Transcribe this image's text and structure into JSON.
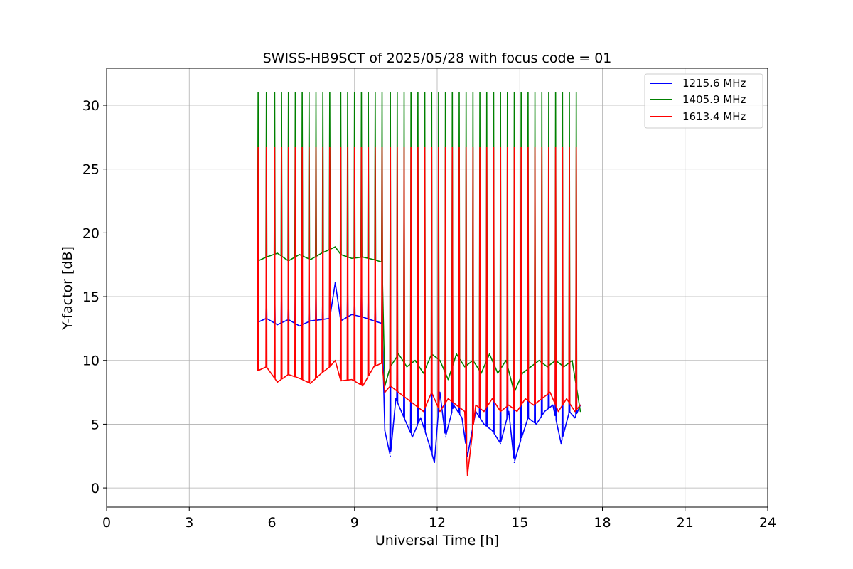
{
  "chart_data": {
    "type": "line",
    "title": "SWISS-HB9SCT of 2025/05/28 with focus code = 01",
    "xlabel": "Universal Time [h]",
    "ylabel": "Y-factor [dB]",
    "xlim": [
      0,
      24
    ],
    "ylim": [
      -1.5,
      32.9
    ],
    "xticks": [
      0,
      3,
      6,
      9,
      12,
      15,
      18,
      21,
      24
    ],
    "yticks": [
      0,
      5,
      10,
      15,
      20,
      25,
      30
    ],
    "grid": true,
    "legend_position": "top-right",
    "spike_times_h": [
      5.5,
      5.8,
      6.1,
      6.35,
      6.6,
      6.85,
      7.1,
      7.35,
      7.6,
      7.85,
      8.1,
      8.5,
      8.75,
      9.0,
      9.25,
      9.5,
      9.75,
      10.0,
      10.3,
      10.55,
      10.8,
      11.05,
      11.3,
      11.55,
      11.8,
      12.05,
      12.3,
      12.55,
      12.8,
      13.05,
      13.3,
      13.55,
      13.8,
      14.05,
      14.3,
      14.55,
      14.8,
      15.05,
      15.3,
      15.55,
      15.8,
      16.05,
      16.3,
      16.55,
      16.8,
      17.05
    ],
    "series": [
      {
        "name": "1215.6 MHz",
        "color": "#0000ff",
        "spike_peak": 15.8,
        "x": [
          5.5,
          5.8,
          6.2,
          6.6,
          7.0,
          7.4,
          7.8,
          8.1,
          8.3,
          8.5,
          8.9,
          9.3,
          9.7,
          10.0,
          10.1,
          10.3,
          10.5,
          10.8,
          11.1,
          11.4,
          11.7,
          11.9,
          12.1,
          12.3,
          12.6,
          12.9,
          13.1,
          13.4,
          13.7,
          14.0,
          14.3,
          14.6,
          14.8,
          15.0,
          15.3,
          15.6,
          15.9,
          16.2,
          16.5,
          16.8,
          17.0,
          17.2
        ],
        "y": [
          13.0,
          13.3,
          12.8,
          13.2,
          12.7,
          13.1,
          13.2,
          13.3,
          16.1,
          13.1,
          13.6,
          13.4,
          13.1,
          12.9,
          4.5,
          2.5,
          7.0,
          5.5,
          4.0,
          5.5,
          3.5,
          2.0,
          7.5,
          4.0,
          6.5,
          5.5,
          2.5,
          6.0,
          5.0,
          4.5,
          3.5,
          6.0,
          2.0,
          3.5,
          5.5,
          5.0,
          6.0,
          6.5,
          3.5,
          6.0,
          5.5,
          6.5
        ]
      },
      {
        "name": "1405.9 MHz",
        "color": "#008000",
        "spike_peak": 31.0,
        "x": [
          5.5,
          5.8,
          6.2,
          6.6,
          7.0,
          7.4,
          7.8,
          8.1,
          8.3,
          8.5,
          8.9,
          9.3,
          9.7,
          10.0,
          10.1,
          10.3,
          10.6,
          10.9,
          11.2,
          11.5,
          11.8,
          12.1,
          12.4,
          12.7,
          13.0,
          13.3,
          13.6,
          13.9,
          14.2,
          14.5,
          14.8,
          15.1,
          15.4,
          15.7,
          16.0,
          16.3,
          16.6,
          16.9,
          17.2
        ],
        "y": [
          17.8,
          18.1,
          18.4,
          17.8,
          18.3,
          17.9,
          18.4,
          18.7,
          18.9,
          18.3,
          18.0,
          18.1,
          17.9,
          17.7,
          8.0,
          9.5,
          10.5,
          9.5,
          10.0,
          9.0,
          10.5,
          10.0,
          8.5,
          10.5,
          9.5,
          10.0,
          9.0,
          10.5,
          9.0,
          10.0,
          7.5,
          9.0,
          9.5,
          10.0,
          9.5,
          10.0,
          9.5,
          10.0,
          6.0
        ]
      },
      {
        "name": "1613.4 MHz",
        "color": "#ff0000",
        "spike_peak": 26.7,
        "x": [
          5.5,
          5.8,
          6.2,
          6.6,
          7.0,
          7.4,
          7.8,
          8.1,
          8.3,
          8.5,
          8.9,
          9.3,
          9.7,
          10.0,
          10.1,
          10.3,
          10.6,
          10.9,
          11.2,
          11.5,
          11.8,
          12.1,
          12.4,
          12.7,
          13.0,
          13.1,
          13.4,
          13.7,
          14.0,
          14.3,
          14.6,
          14.9,
          15.2,
          15.5,
          15.8,
          16.1,
          16.4,
          16.7,
          17.0,
          17.2
        ],
        "y": [
          9.2,
          9.5,
          8.3,
          8.9,
          8.6,
          8.2,
          9.0,
          9.5,
          10.0,
          8.4,
          8.5,
          8.0,
          9.5,
          9.8,
          7.5,
          8.0,
          7.5,
          7.0,
          6.5,
          6.0,
          7.5,
          6.0,
          7.0,
          6.5,
          6.0,
          1.0,
          6.5,
          6.0,
          7.0,
          6.0,
          6.5,
          6.0,
          7.0,
          6.5,
          7.0,
          7.5,
          6.0,
          7.0,
          6.0,
          6.5
        ]
      }
    ]
  }
}
